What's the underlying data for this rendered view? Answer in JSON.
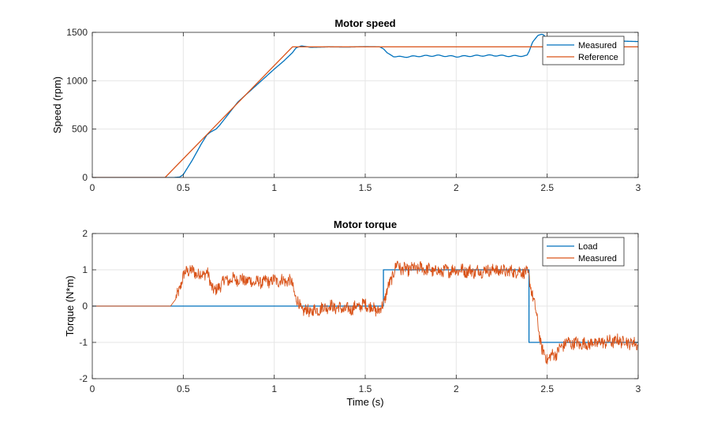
{
  "colors": {
    "blue": "#0072BD",
    "orange": "#D95319",
    "grid": "#e6e6e6",
    "axis": "#262626"
  },
  "chart_data": [
    {
      "type": "line",
      "title": "Motor speed",
      "xlabel": "",
      "ylabel": "Speed (rpm)",
      "xlim": [
        0,
        3
      ],
      "ylim": [
        0,
        1500
      ],
      "xticks": [
        0,
        0.5,
        1,
        1.5,
        2,
        2.5,
        3
      ],
      "xtick_labels": [
        "0",
        "0.5",
        "1",
        "1.5",
        "2",
        "2.5",
        "3"
      ],
      "yticks": [
        0,
        500,
        1000,
        1500
      ],
      "ytick_labels": [
        "0",
        "500",
        "1000",
        "1500"
      ],
      "grid": true,
      "legend_position": "top-right",
      "series": [
        {
          "name": "Measured",
          "color": "#0072BD",
          "x": [
            0,
            0.45,
            0.48,
            0.5,
            0.52,
            0.55,
            0.6,
            0.63,
            0.65,
            0.68,
            0.7,
            0.75,
            0.8,
            0.9,
            1.0,
            1.05,
            1.1,
            1.12,
            1.15,
            1.2,
            1.3,
            1.4,
            1.5,
            1.58,
            1.6,
            1.62,
            1.65,
            1.7,
            1.8,
            1.9,
            2.0,
            2.1,
            2.2,
            2.3,
            2.39,
            2.4,
            2.42,
            2.45,
            2.47,
            2.48,
            2.5,
            2.52,
            2.55,
            2.6,
            2.7,
            2.8,
            2.9,
            3.0
          ],
          "y": [
            0,
            0,
            5,
            30,
            90,
            180,
            350,
            440,
            470,
            500,
            540,
            660,
            780,
            950,
            1120,
            1200,
            1290,
            1340,
            1360,
            1345,
            1350,
            1348,
            1352,
            1350,
            1330,
            1290,
            1255,
            1245,
            1255,
            1260,
            1250,
            1258,
            1262,
            1255,
            1258,
            1300,
            1400,
            1470,
            1480,
            1475,
            1430,
            1405,
            1410,
            1405,
            1410,
            1408,
            1410,
            1405
          ]
        },
        {
          "name": "Reference",
          "color": "#D95319",
          "x": [
            0,
            0.4,
            1.1,
            3.0
          ],
          "y": [
            0,
            0,
            1350,
            1350
          ]
        }
      ]
    },
    {
      "type": "line",
      "title": "Motor torque",
      "xlabel": "Time (s)",
      "ylabel": "Torque (N*m)",
      "xlim": [
        0,
        3
      ],
      "ylim": [
        -2,
        2
      ],
      "xticks": [
        0,
        0.5,
        1,
        1.5,
        2,
        2.5,
        3
      ],
      "xtick_labels": [
        "0",
        "0.5",
        "1",
        "1.5",
        "2",
        "2.5",
        "3"
      ],
      "yticks": [
        -2,
        -1,
        0,
        1,
        2
      ],
      "ytick_labels": [
        "-2",
        "-1",
        "0",
        "1",
        "2"
      ],
      "grid": true,
      "legend_position": "top-right",
      "series": [
        {
          "name": "Load",
          "color": "#0072BD",
          "x": [
            0,
            1.6,
            1.6,
            2.4,
            2.4,
            3.0
          ],
          "y": [
            0,
            0,
            1,
            1,
            -1,
            -1
          ]
        },
        {
          "name": "Measured",
          "color": "#D95319",
          "x": [
            0,
            0.43,
            0.46,
            0.5,
            0.52,
            0.55,
            0.6,
            0.63,
            0.65,
            0.68,
            0.72,
            0.8,
            0.9,
            1.0,
            1.08,
            1.1,
            1.12,
            1.15,
            1.2,
            1.3,
            1.4,
            1.5,
            1.58,
            1.6,
            1.62,
            1.65,
            1.68,
            1.7,
            1.8,
            1.9,
            2.0,
            2.1,
            2.2,
            2.3,
            2.38,
            2.4,
            2.42,
            2.45,
            2.47,
            2.5,
            2.55,
            2.6,
            2.7,
            2.8,
            2.9,
            3.0
          ],
          "y": [
            0,
            0,
            0.2,
            0.8,
            1.0,
            0.95,
            0.85,
            0.95,
            0.6,
            0.4,
            0.7,
            0.75,
            0.65,
            0.7,
            0.7,
            0.6,
            0.2,
            -0.1,
            -0.15,
            0.0,
            -0.1,
            0.05,
            -0.15,
            0.1,
            0.4,
            0.85,
            1.2,
            1.0,
            1.05,
            0.95,
            1.0,
            0.95,
            1.0,
            0.95,
            0.95,
            0.8,
            0.3,
            -0.5,
            -1.2,
            -1.45,
            -1.3,
            -1.0,
            -1.05,
            -1.0,
            -0.95,
            -1.05
          ]
        }
      ]
    }
  ]
}
